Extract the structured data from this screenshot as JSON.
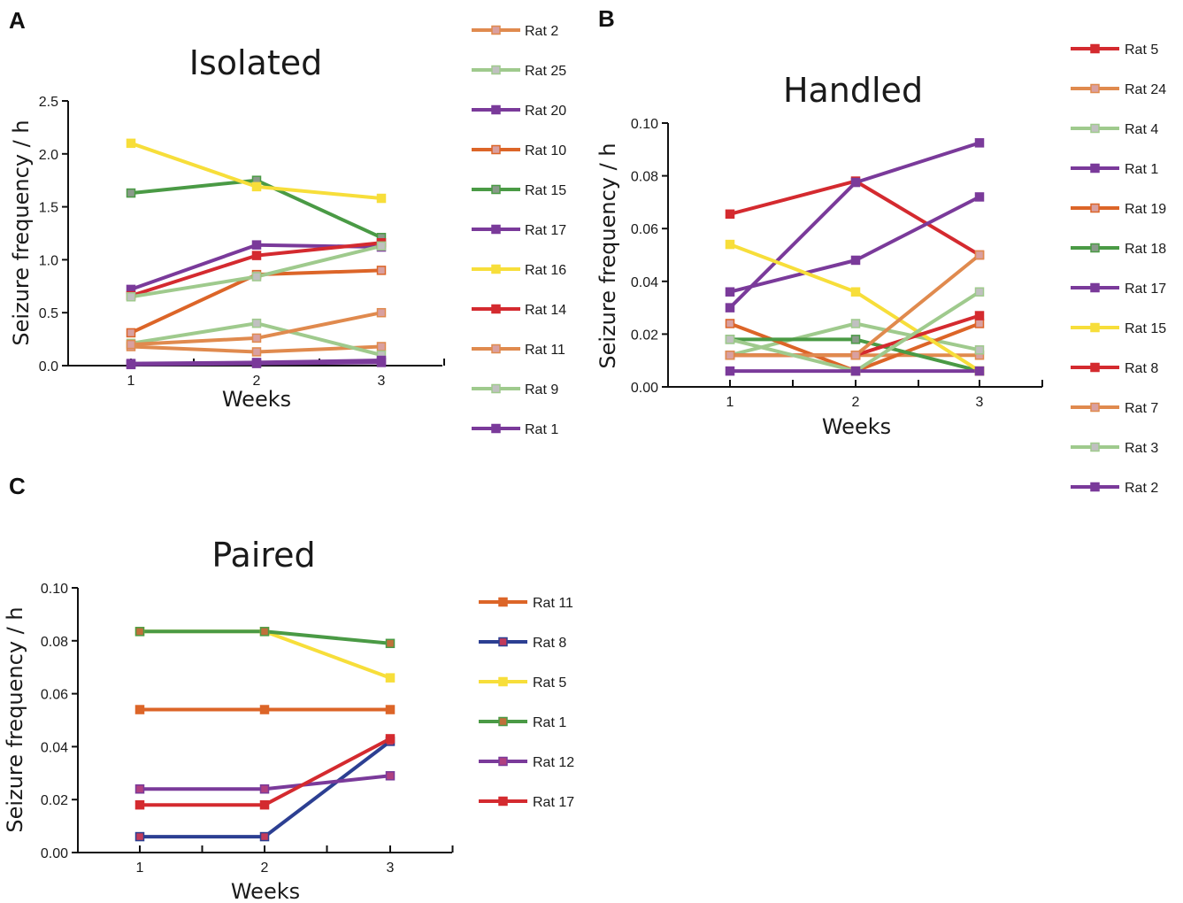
{
  "panel_letters": [
    "A",
    "B",
    "C"
  ],
  "colors": {
    "orange": "#e08a4e",
    "light_green": "#9fca8d",
    "purple": "#7a3a9a",
    "dark_orange": "#dc6528",
    "green": "#4a9a45",
    "yellow": "#f7de3a",
    "red": "#d42a2f",
    "blue": "#2c3f92"
  },
  "chart_data": [
    {
      "type": "line",
      "title": "Isolated",
      "xlabel": "Weeks",
      "ylabel": "Seizure frequency / h",
      "x": [
        1,
        2,
        3
      ],
      "x_ticks": [
        "1",
        "2",
        "3"
      ],
      "ylim": [
        0,
        2.5
      ],
      "y_ticks": [
        "0.0",
        "0.5",
        "1.0",
        "1.5",
        "2.0",
        "2.5"
      ],
      "legend_position": "right",
      "series": [
        {
          "name": "Rat 2",
          "color": "#e08a4e",
          "marker_fill": "#d9a0a0",
          "values": [
            0.18,
            0.13,
            0.18
          ]
        },
        {
          "name": "Rat 25",
          "color": "#9fca8d",
          "marker_fill": "#c0c0c0",
          "values": [
            0.21,
            0.4,
            0.1
          ]
        },
        {
          "name": "Rat 20",
          "color": "#7a3a9a",
          "marker_fill": "#7a3a9a",
          "values": [
            0.02,
            0.03,
            0.05
          ]
        },
        {
          "name": "Rat 10",
          "color": "#dc6528",
          "marker_fill": "#d9a0a0",
          "values": [
            0.31,
            0.86,
            0.9
          ]
        },
        {
          "name": "Rat 15",
          "color": "#4a9a45",
          "marker_fill": "#8a9a8a",
          "values": [
            1.63,
            1.75,
            1.21
          ]
        },
        {
          "name": "Rat 17",
          "color": "#7a3a9a",
          "marker_fill": "#7a3a9a",
          "values": [
            0.72,
            1.14,
            1.12
          ]
        },
        {
          "name": "Rat 16",
          "color": "#f7de3a",
          "marker_fill": "#f7de3a",
          "values": [
            2.1,
            1.69,
            1.58
          ]
        },
        {
          "name": "Rat 14",
          "color": "#d42a2f",
          "marker_fill": "#d42a2f",
          "values": [
            0.66,
            1.04,
            1.16
          ]
        },
        {
          "name": "Rat 11",
          "color": "#e08a4e",
          "marker_fill": "#d9a0a0",
          "values": [
            0.2,
            0.26,
            0.5
          ]
        },
        {
          "name": "Rat 9",
          "color": "#9fca8d",
          "marker_fill": "#c0c0c0",
          "values": [
            0.65,
            0.84,
            1.13
          ]
        },
        {
          "name": "Rat 1",
          "color": "#7a3a9a",
          "marker_fill": "#7a3a9a",
          "values": [
            0.01,
            0.02,
            0.03
          ]
        }
      ]
    },
    {
      "type": "line",
      "title": "Handled",
      "xlabel": "Weeks",
      "ylabel": "Seizure frequency / h",
      "x": [
        1,
        2,
        3
      ],
      "x_ticks": [
        "1",
        "2",
        "3"
      ],
      "ylim": [
        0,
        0.1
      ],
      "y_ticks": [
        "0.00",
        "0.02",
        "0.04",
        "0.06",
        "0.08",
        "0.10"
      ],
      "legend_position": "right",
      "series": [
        {
          "name": "Rat 5",
          "color": "#d42a2f",
          "marker_fill": "#d42a2f",
          "values": [
            0.0655,
            0.078,
            0.05
          ]
        },
        {
          "name": "Rat 24",
          "color": "#e08a4e",
          "marker_fill": "#d9a0a0",
          "values": [
            0.012,
            0.012,
            0.012
          ]
        },
        {
          "name": "Rat 4",
          "color": "#9fca8d",
          "marker_fill": "#c0c0c0",
          "values": [
            0.012,
            0.024,
            0.014
          ]
        },
        {
          "name": "Rat 1",
          "color": "#7a3a9a",
          "marker_fill": "#7a3a9a",
          "values": [
            0.03,
            0.0775,
            0.0925
          ]
        },
        {
          "name": "Rat 19",
          "color": "#dc6528",
          "marker_fill": "#d9a0a0",
          "values": [
            0.024,
            0.006,
            0.024
          ]
        },
        {
          "name": "Rat 18",
          "color": "#4a9a45",
          "marker_fill": "#8a9a8a",
          "values": [
            0.018,
            0.018,
            0.006
          ]
        },
        {
          "name": "Rat 17",
          "color": "#7a3a9a",
          "marker_fill": "#7a3a9a",
          "values": [
            0.036,
            0.048,
            0.072
          ]
        },
        {
          "name": "Rat 15",
          "color": "#f7de3a",
          "marker_fill": "#f7de3a",
          "values": [
            0.054,
            0.036,
            0.006
          ]
        },
        {
          "name": "Rat 8",
          "color": "#d42a2f",
          "marker_fill": "#d42a2f",
          "values": [
            0.012,
            0.012,
            0.027
          ]
        },
        {
          "name": "Rat 7",
          "color": "#e08a4e",
          "marker_fill": "#d9a0a0",
          "values": [
            0.012,
            0.012,
            0.05
          ]
        },
        {
          "name": "Rat 3",
          "color": "#9fca8d",
          "marker_fill": "#c0c0c0",
          "values": [
            0.018,
            0.006,
            0.036
          ]
        },
        {
          "name": "Rat 2",
          "color": "#7a3a9a",
          "marker_fill": "#7a3a9a",
          "values": [
            0.006,
            0.006,
            0.006
          ]
        }
      ]
    },
    {
      "type": "line",
      "title": "Paired",
      "xlabel": "Weeks",
      "ylabel": "Seizure frequency / h",
      "x": [
        1,
        2,
        3
      ],
      "x_ticks": [
        "1",
        "2",
        "3"
      ],
      "ylim": [
        0,
        0.1
      ],
      "y_ticks": [
        "0.00",
        "0.02",
        "0.04",
        "0.06",
        "0.08",
        "0.10"
      ],
      "legend_position": "right",
      "series": [
        {
          "name": "Rat 11",
          "color": "#dc6528",
          "marker_fill": "#dc6528",
          "values": [
            0.054,
            0.054,
            0.054
          ]
        },
        {
          "name": "Rat 8",
          "color": "#2c3f92",
          "marker_fill": "#c23a5a",
          "values": [
            0.006,
            0.006,
            0.042
          ]
        },
        {
          "name": "Rat 5",
          "color": "#f7de3a",
          "marker_fill": "#f7de3a",
          "values": [
            0.0835,
            0.0835,
            0.066
          ]
        },
        {
          "name": "Rat 1",
          "color": "#4a9a45",
          "marker_fill": "#c0703a",
          "values": [
            0.0835,
            0.0835,
            0.079
          ]
        },
        {
          "name": "Rat 12",
          "color": "#7a3a9a",
          "marker_fill": "#b04080",
          "values": [
            0.024,
            0.024,
            0.029
          ]
        },
        {
          "name": "Rat 17",
          "color": "#d42a2f",
          "marker_fill": "#d42a2f",
          "values": [
            0.018,
            0.018,
            0.043
          ]
        }
      ]
    }
  ]
}
